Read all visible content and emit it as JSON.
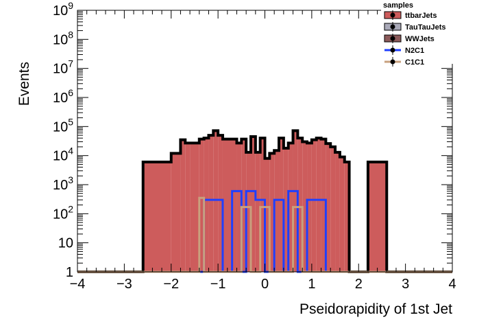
{
  "chart_data": {
    "type": "histogram",
    "xlabel": "Pseidorapidity of 1st Jet",
    "ylabel": "Events",
    "xlim": [
      -4,
      4
    ],
    "ylim": [
      1,
      1000000000
    ],
    "yscale": "log",
    "grid": false,
    "legend_placement": "top-right",
    "legend_title": "samples",
    "x_ticks": [
      "−4",
      "−3",
      "−2",
      "−1",
      "0",
      "1",
      "2",
      "3",
      "4"
    ],
    "y_ticks": [
      {
        "value": 1,
        "base": "1",
        "exp": ""
      },
      {
        "value": 10,
        "base": "10",
        "exp": ""
      },
      {
        "value": 100,
        "base": "10",
        "exp": "2"
      },
      {
        "value": 1000,
        "base": "10",
        "exp": "3"
      },
      {
        "value": 10000,
        "base": "10",
        "exp": "4"
      },
      {
        "value": 100000,
        "base": "10",
        "exp": "5"
      },
      {
        "value": 1000000,
        "base": "10",
        "exp": "6"
      },
      {
        "value": 10000000,
        "base": "10",
        "exp": "7"
      },
      {
        "value": 100000000,
        "base": "10",
        "exp": "8"
      },
      {
        "value": 1000000000,
        "base": "10",
        "exp": "9"
      }
    ],
    "series": [
      {
        "name": "ttbarJets",
        "color": "#cd5c5c",
        "line_color": "#000000",
        "filled": true,
        "bins": [
          [
            -4.0,
            -2.6,
            1
          ],
          [
            -2.6,
            -2.0,
            6000
          ],
          [
            -2.0,
            -1.8,
            12000
          ],
          [
            -1.8,
            -1.7,
            35000
          ],
          [
            -1.7,
            -1.6,
            27000
          ],
          [
            -1.6,
            -1.4,
            27000
          ],
          [
            -1.4,
            -1.3,
            37000
          ],
          [
            -1.3,
            -1.2,
            40000
          ],
          [
            -1.2,
            -1.1,
            50000
          ],
          [
            -1.1,
            -1.0,
            72000
          ],
          [
            -1.0,
            -0.9,
            50000
          ],
          [
            -0.9,
            -0.6,
            37000
          ],
          [
            -0.6,
            -0.5,
            27000
          ],
          [
            -0.5,
            -0.4,
            37000
          ],
          [
            -0.4,
            -0.3,
            13000
          ],
          [
            -0.3,
            -0.2,
            45000
          ],
          [
            -0.2,
            -0.1,
            13000
          ],
          [
            -0.1,
            0.0,
            40000
          ],
          [
            0.0,
            0.1,
            8000
          ],
          [
            0.1,
            0.2,
            12000
          ],
          [
            0.2,
            0.3,
            15000
          ],
          [
            0.3,
            0.4,
            40000
          ],
          [
            0.4,
            0.5,
            18000
          ],
          [
            0.5,
            0.6,
            27000
          ],
          [
            0.6,
            0.7,
            72000
          ],
          [
            0.7,
            0.8,
            40000
          ],
          [
            0.8,
            0.9,
            30000
          ],
          [
            0.9,
            1.0,
            27000
          ],
          [
            1.0,
            1.1,
            35000
          ],
          [
            1.1,
            1.2,
            40000
          ],
          [
            1.2,
            1.3,
            37000
          ],
          [
            1.3,
            1.4,
            26000
          ],
          [
            1.4,
            1.5,
            20000
          ],
          [
            1.5,
            1.6,
            13000
          ],
          [
            1.6,
            1.7,
            9000
          ],
          [
            1.7,
            1.8,
            6000
          ],
          [
            1.8,
            2.0,
            1
          ],
          [
            2.0,
            2.2,
            1
          ],
          [
            2.2,
            2.6,
            6000
          ],
          [
            2.6,
            4.0,
            1
          ]
        ]
      },
      {
        "name": "TauTauJets",
        "color": "#a9a9b8",
        "line_color": "#000000",
        "filled": true,
        "bins": []
      },
      {
        "name": "WWJets",
        "color": "#8b5a5a",
        "line_color": "#000000",
        "filled": true,
        "bins": []
      },
      {
        "name": "N2C1",
        "color": "#1f3fff",
        "filled": false,
        "bins": [
          [
            -4.0,
            -1.3,
            1
          ],
          [
            -1.3,
            -0.9,
            300
          ],
          [
            -0.9,
            -0.7,
            1
          ],
          [
            -0.7,
            -0.5,
            600
          ],
          [
            -0.5,
            -0.4,
            1
          ],
          [
            -0.4,
            -0.2,
            600
          ],
          [
            -0.2,
            0.0,
            300
          ],
          [
            0.0,
            0.2,
            1
          ],
          [
            0.2,
            0.4,
            300
          ],
          [
            0.4,
            0.5,
            1
          ],
          [
            0.5,
            0.7,
            600
          ],
          [
            0.7,
            0.9,
            1
          ],
          [
            0.9,
            1.1,
            300
          ],
          [
            1.1,
            1.3,
            300
          ],
          [
            1.3,
            4.0,
            1
          ]
        ]
      },
      {
        "name": "C1C1",
        "color": "#c8a07e",
        "filled": false,
        "bins": [
          [
            -4.0,
            -1.4,
            1
          ],
          [
            -1.4,
            -1.3,
            350
          ],
          [
            -1.3,
            -0.5,
            1
          ],
          [
            -0.5,
            -0.3,
            170
          ],
          [
            -0.3,
            -0.1,
            1
          ],
          [
            -0.1,
            0.1,
            170
          ],
          [
            0.1,
            0.6,
            1
          ],
          [
            0.6,
            0.8,
            170
          ],
          [
            0.8,
            4.0,
            1
          ]
        ]
      }
    ]
  }
}
